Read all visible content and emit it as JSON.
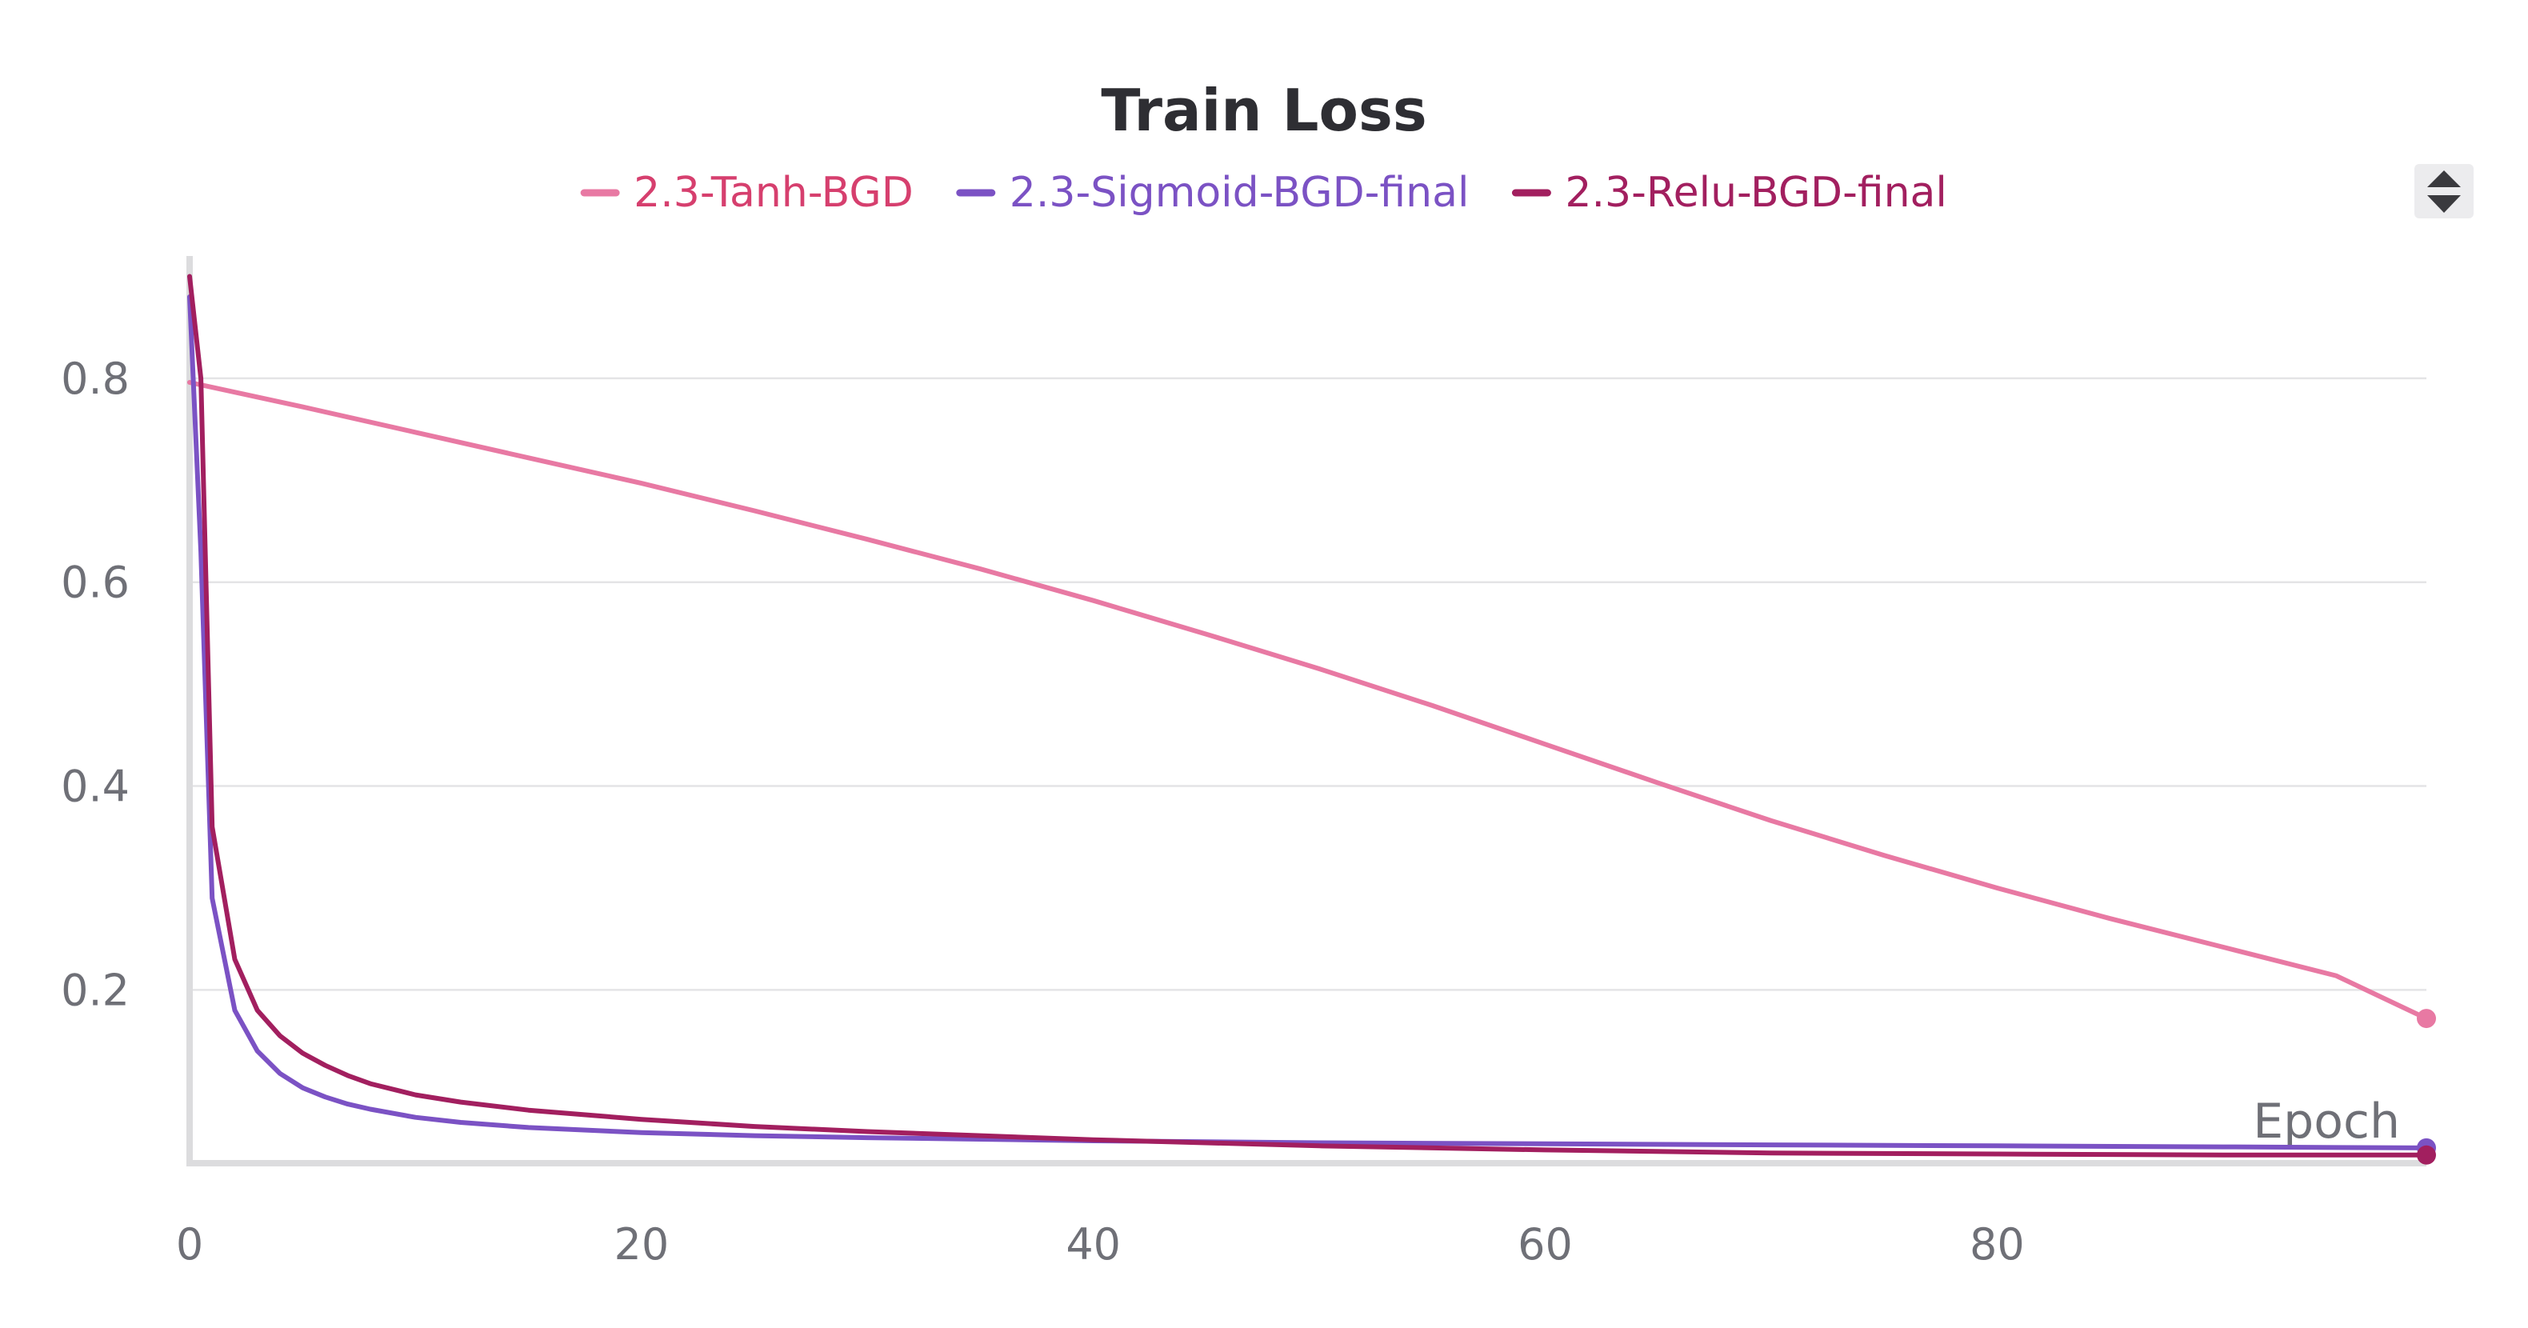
{
  "chart_data": {
    "type": "line",
    "title": "Train Loss",
    "xlabel": "Epoch",
    "ylabel": "",
    "xlim": [
      0,
      99
    ],
    "ylim": [
      0.03,
      0.92
    ],
    "x_ticks": [
      0,
      20,
      40,
      60,
      80
    ],
    "y_ticks": [
      0.2,
      0.4,
      0.6,
      0.8
    ],
    "x_tick_labels": [
      "0",
      "20",
      "40",
      "60",
      "80"
    ],
    "y_tick_labels": [
      "0.2",
      "0.4",
      "0.6",
      "0.8"
    ],
    "grid": true,
    "legend_position": "top-center",
    "series": [
      {
        "name": "2.3-Tanh-BGD",
        "color": "#e879a3",
        "label_color": "#d63f6e",
        "x": [
          0,
          5,
          10,
          15,
          20,
          25,
          30,
          35,
          40,
          45,
          50,
          55,
          60,
          65,
          70,
          75,
          80,
          85,
          90,
          95,
          99
        ],
        "y": [
          0.796,
          0.772,
          0.747,
          0.722,
          0.697,
          0.67,
          0.642,
          0.613,
          0.582,
          0.549,
          0.515,
          0.479,
          0.441,
          0.403,
          0.366,
          0.332,
          0.3,
          0.27,
          0.242,
          0.214,
          0.172
        ]
      },
      {
        "name": "2.3-Sigmoid-BGD-final",
        "color": "#7b52c4",
        "label_color": "#7b52c4",
        "x": [
          0,
          0.5,
          1,
          2,
          3,
          4,
          5,
          6,
          7,
          8,
          10,
          12,
          15,
          20,
          25,
          30,
          40,
          50,
          60,
          70,
          80,
          90,
          99
        ],
        "y": [
          0.88,
          0.63,
          0.29,
          0.18,
          0.14,
          0.118,
          0.104,
          0.095,
          0.088,
          0.083,
          0.075,
          0.07,
          0.065,
          0.06,
          0.057,
          0.055,
          0.052,
          0.05,
          0.049,
          0.048,
          0.047,
          0.046,
          0.045
        ]
      },
      {
        "name": "2.3-Relu-BGD-final",
        "color": "#a21f5f",
        "label_color": "#a21f5f",
        "x": [
          0,
          0.5,
          1,
          2,
          3,
          4,
          5,
          6,
          7,
          8,
          10,
          12,
          15,
          20,
          25,
          30,
          40,
          50,
          60,
          70,
          80,
          90,
          99
        ],
        "y": [
          0.9,
          0.8,
          0.36,
          0.23,
          0.18,
          0.155,
          0.138,
          0.126,
          0.116,
          0.108,
          0.097,
          0.09,
          0.082,
          0.073,
          0.066,
          0.061,
          0.053,
          0.047,
          0.043,
          0.04,
          0.039,
          0.038,
          0.038
        ]
      }
    ]
  }
}
